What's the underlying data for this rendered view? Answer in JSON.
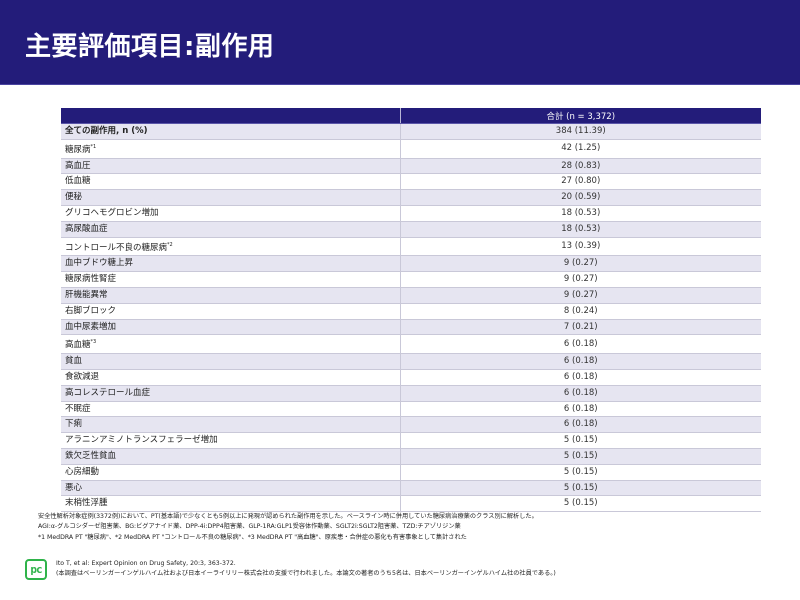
{
  "header": {
    "title": "主要評価項目:副作用"
  },
  "table": {
    "columns": [
      "",
      "合計 (n = 3,372)"
    ],
    "rows": [
      {
        "label": "全ての副作用, n (%)",
        "sup": "",
        "value": "384 (11.39)"
      },
      {
        "label": "糖尿病",
        "sup": "*1",
        "value": "42 (1.25)"
      },
      {
        "label": "高血圧",
        "sup": "",
        "value": "28 (0.83)"
      },
      {
        "label": "低血糖",
        "sup": "",
        "value": "27 (0.80)"
      },
      {
        "label": "便秘",
        "sup": "",
        "value": "20 (0.59)"
      },
      {
        "label": "グリコヘモグロビン増加",
        "sup": "",
        "value": "18 (0.53)"
      },
      {
        "label": "高尿酸血症",
        "sup": "",
        "value": "18 (0.53)"
      },
      {
        "label": "コントロール不良の糖尿病",
        "sup": "*2",
        "value": "13 (0.39)"
      },
      {
        "label": "血中ブドウ糖上昇",
        "sup": "",
        "value": "9 (0.27)"
      },
      {
        "label": "糖尿病性腎症",
        "sup": "",
        "value": "9 (0.27)"
      },
      {
        "label": "肝機能異常",
        "sup": "",
        "value": "9 (0.27)"
      },
      {
        "label": "右脚ブロック",
        "sup": "",
        "value": "8 (0.24)"
      },
      {
        "label": "血中尿素増加",
        "sup": "",
        "value": "7 (0.21)"
      },
      {
        "label": "高血糖",
        "sup": "*3",
        "value": "6 (0.18)"
      },
      {
        "label": "貧血",
        "sup": "",
        "value": "6 (0.18)"
      },
      {
        "label": "食欲減退",
        "sup": "",
        "value": "6 (0.18)"
      },
      {
        "label": "高コレステロール血症",
        "sup": "",
        "value": "6 (0.18)"
      },
      {
        "label": "不眠症",
        "sup": "",
        "value": "6 (0.18)"
      },
      {
        "label": "下痢",
        "sup": "",
        "value": "6 (0.18)"
      },
      {
        "label": "アラニンアミノトランスフェラーゼ増加",
        "sup": "",
        "value": "5 (0.15)"
      },
      {
        "label": "鉄欠乏性貧血",
        "sup": "",
        "value": "5 (0.15)"
      },
      {
        "label": "心房細動",
        "sup": "",
        "value": "5 (0.15)"
      },
      {
        "label": "悪心",
        "sup": "",
        "value": "5 (0.15)"
      },
      {
        "label": "末梢性浮腫",
        "sup": "",
        "value": "5 (0.15)"
      }
    ]
  },
  "footnotes": [
    "安全性解析対象症例(3372例)において、PT(基本語)で少なくとも5例以上に発現が認められた副作用を示した。ベースライン時に併用していた糖尿病治療薬のクラス別に解析した。",
    "AGI:α-グルコシダーゼ阻害薬、BG:ビグアナイド薬、DPP-4i:DPP4阻害薬、GLP-1RA:GLP1受容体作動薬、SGLT2i:SGLT2阻害薬、TZD:チアゾリジン薬",
    "*1 MedDRA PT \"糖尿病\"、*2 MedDRA PT \"コントロール不良の糖尿病\"、*3 MedDRA PT \"高血糖\"、原疾患・合併症の悪化も有害事象として集計された"
  ],
  "citation": {
    "logo_text": "pc",
    "reference": "Ito T, et al: Expert Opinion on Drug Safety, 20:3, 363-372.",
    "note": "(本調査はベーリンガーインゲルハイム社および日本イーライリリー株式会社の支援で行われました。本論文の著者のうち5名は、日本ベーリンガーインゲルハイム社の社員である。)"
  }
}
